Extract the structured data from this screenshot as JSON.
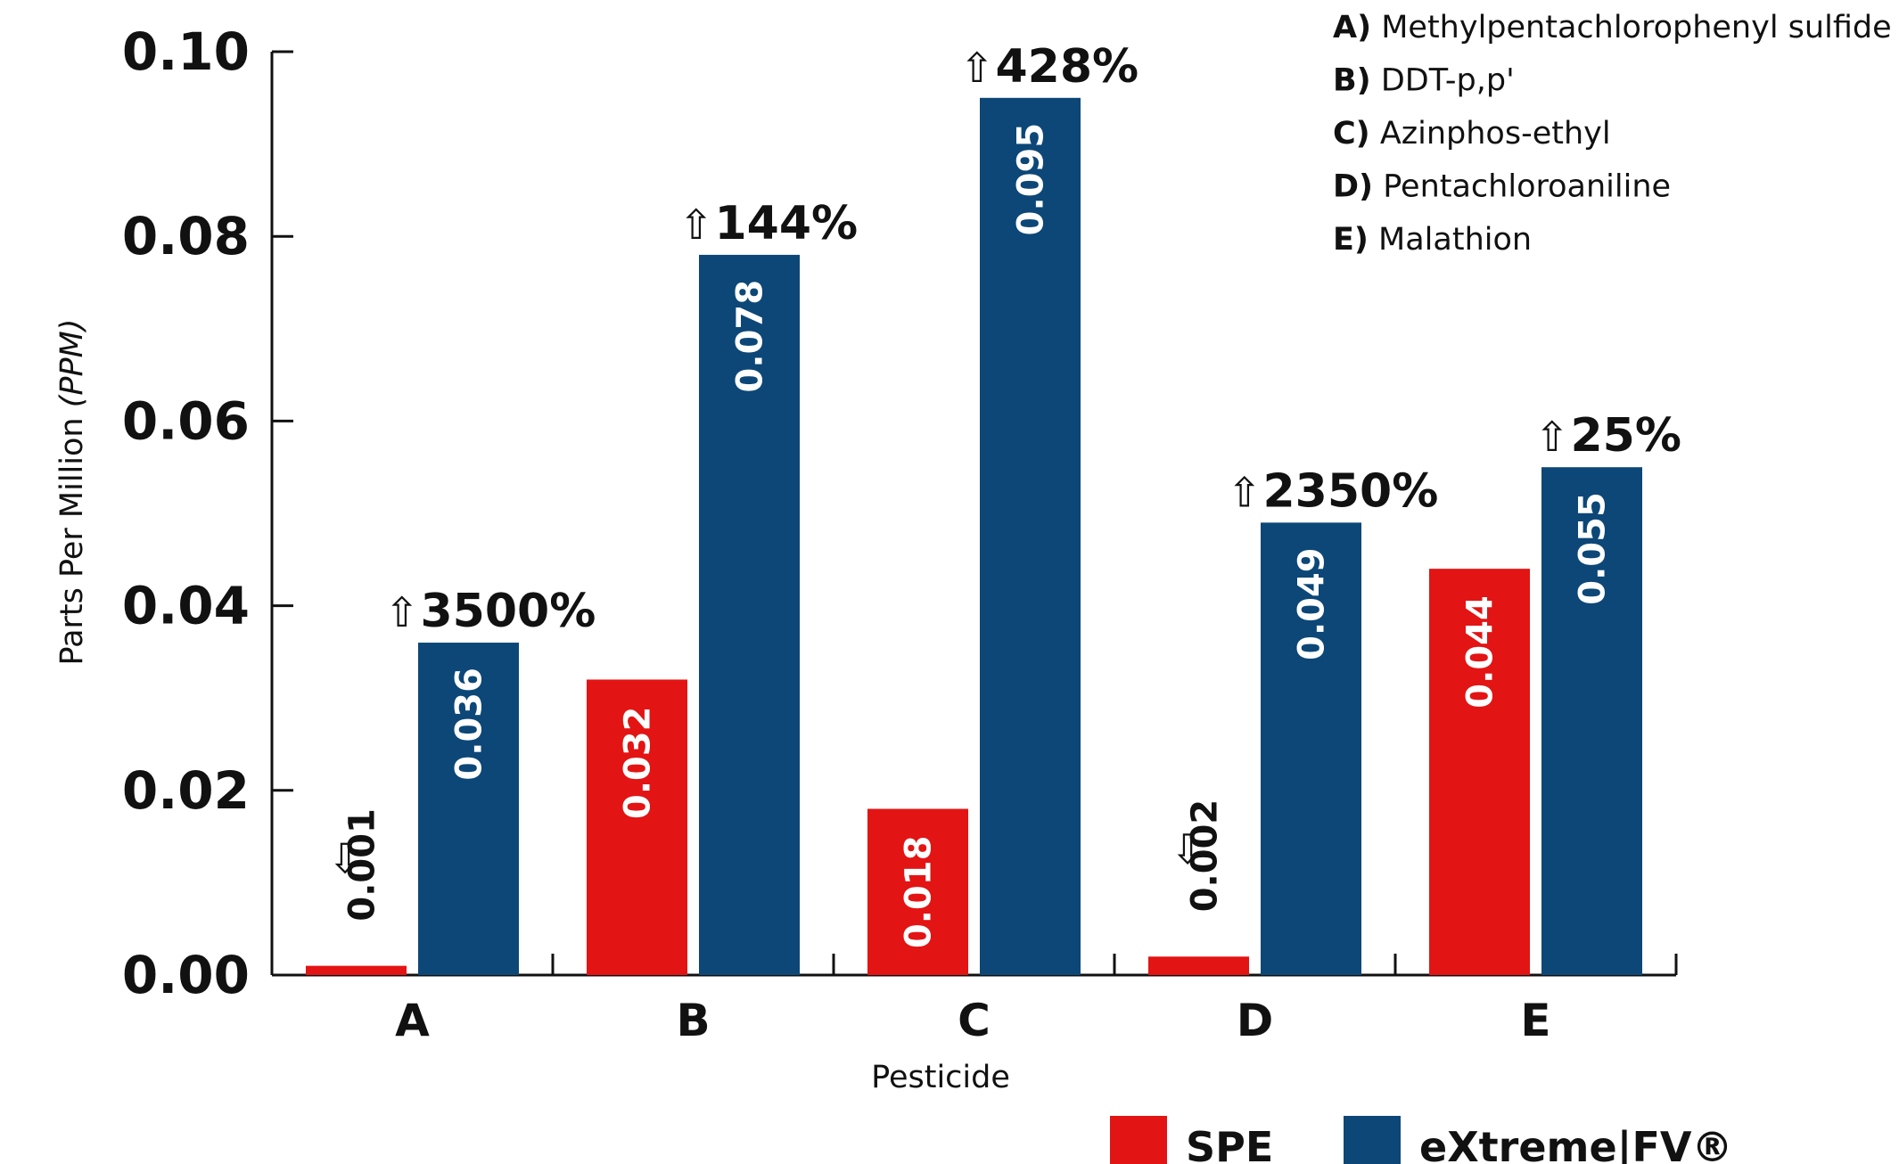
{
  "chart_data": {
    "type": "bar",
    "title": "",
    "xlabel": "Pesticide",
    "ylabel": "Parts Per Million",
    "ylabel_unit": "(PPM)",
    "ylim": [
      0,
      0.1
    ],
    "yticks": [
      "0.00",
      "0.02",
      "0.04",
      "0.06",
      "0.08",
      "0.10"
    ],
    "categories": [
      "A",
      "B",
      "C",
      "D",
      "E"
    ],
    "series": [
      {
        "name": "SPE",
        "color": "#e31414",
        "values": [
          0.001,
          0.032,
          0.018,
          0.002,
          0.044
        ],
        "labels": [
          "0.001",
          "0.032",
          "0.018",
          "0.002",
          "0.044"
        ]
      },
      {
        "name": "eXtreme|FV®",
        "color": "#0c4777",
        "values": [
          0.036,
          0.078,
          0.095,
          0.049,
          0.055
        ],
        "labels": [
          "0.036",
          "0.078",
          "0.095",
          "0.049",
          "0.055"
        ]
      }
    ],
    "increase_labels": [
      "3500%",
      "144%",
      "428%",
      "2350%",
      "25%"
    ],
    "key": [
      {
        "letter": "A)",
        "name": "Methylpentachlorophenyl sulfide"
      },
      {
        "letter": "B)",
        "name": "DDT-p,p'"
      },
      {
        "letter": "C)",
        "name": "Azinphos-ethyl"
      },
      {
        "letter": "D)",
        "name": "Pentachloroaniline"
      },
      {
        "letter": "E)",
        "name": "Malathion"
      }
    ],
    "legend_position": "bottom-right",
    "grid": false
  },
  "icons": {
    "up_arrow": "up-arrow-icon",
    "down_arrow": "down-arrow-icon"
  }
}
